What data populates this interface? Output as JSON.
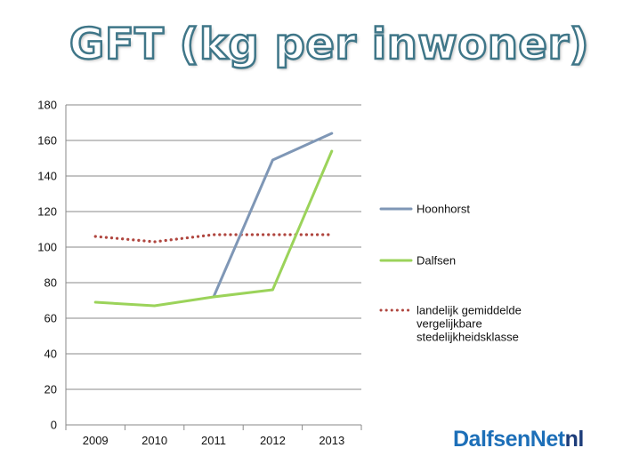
{
  "slide": {
    "title": "GFT (kg per inwoner)"
  },
  "logo": {
    "main": "DalfsenNet",
    "tld": "nl",
    "colors": {
      "main": "#1d6fb8",
      "tld": "#1d3d7a"
    }
  },
  "chart_data": {
    "type": "line",
    "title": "GFT (kg per inwoner)",
    "xlabel": "",
    "ylabel": "",
    "categories": [
      "2009",
      "2010",
      "2011",
      "2012",
      "2013"
    ],
    "ylim": [
      0,
      180
    ],
    "yticks": [
      0,
      20,
      40,
      60,
      80,
      100,
      120,
      140,
      160,
      180
    ],
    "grid": true,
    "legend_position": "right",
    "series": [
      {
        "name": "Hoonhorst",
        "values": [
          null,
          null,
          72,
          149,
          164
        ],
        "color": "#7f97b6",
        "style": "solid"
      },
      {
        "name": "Dalfsen",
        "values": [
          69,
          67,
          72,
          76,
          154
        ],
        "color": "#9bd35a",
        "style": "solid"
      },
      {
        "name": "landelijk gemiddelde vergelijkbare stedelijkheidsklasse",
        "legend_lines": [
          "landelijk gemiddelde",
          "vergelijkbare",
          "stedelijkheidsklasse"
        ],
        "values": [
          106,
          103,
          107,
          107,
          107
        ],
        "color": "#b0463f",
        "style": "dotted"
      }
    ]
  }
}
